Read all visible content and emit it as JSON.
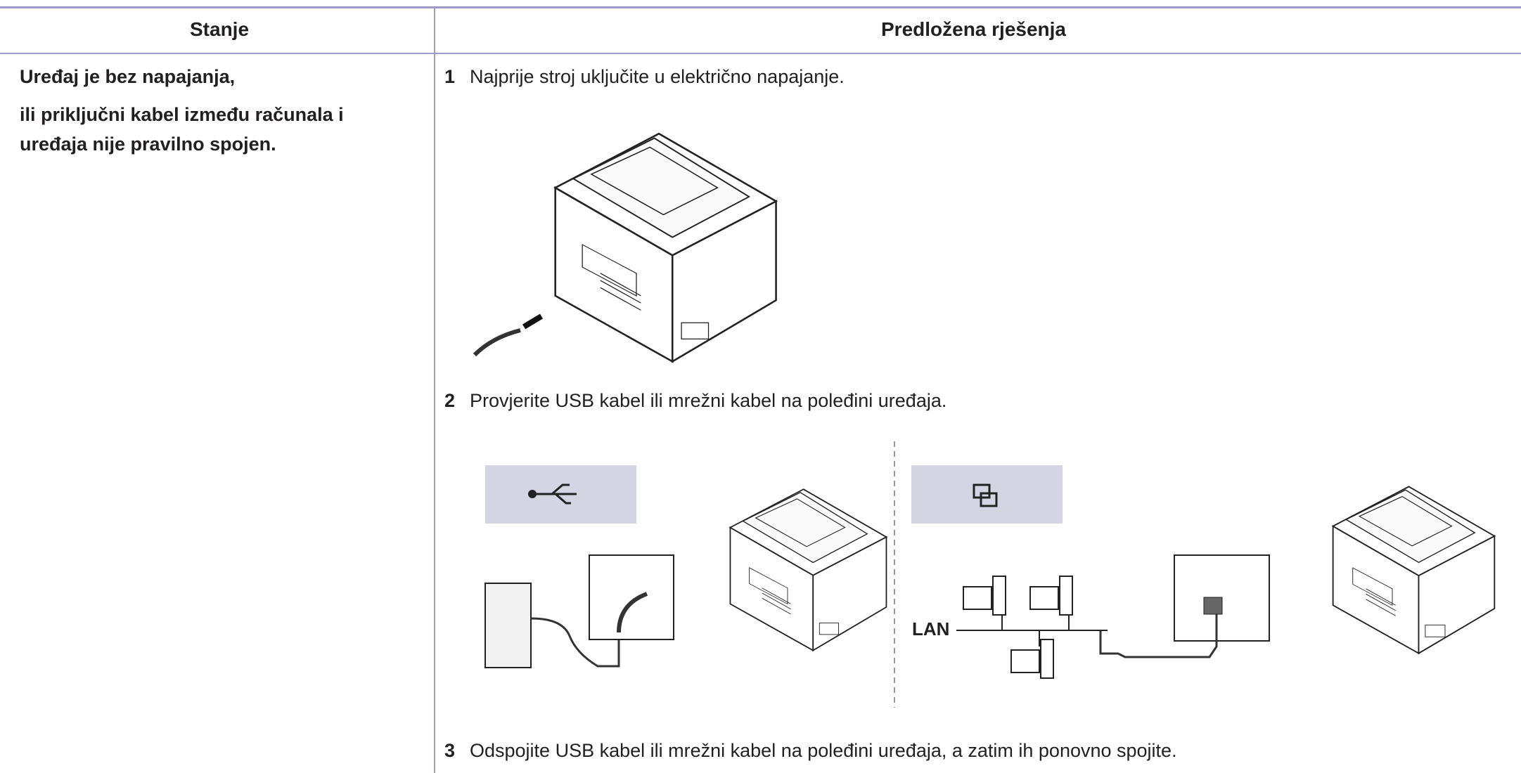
{
  "table": {
    "header": [
      "Stanje",
      "Predložena rješenja"
    ],
    "rows": [
      {
        "condition": [
          "Uređaj je bez napajanja,",
          "ili priključni kabel između računala i",
          "uređaja nije pravilno spojen."
        ],
        "steps": [
          {
            "number": "1",
            "text": "Najprije stroj uključite u električno napajanje."
          },
          {
            "number": "2",
            "text": "Provjerite USB kabel ili mrežni kabel na poleđini uređaja."
          },
          {
            "number": "3",
            "text": "Odspojite USB kabel ili mrežni kabel na poleđini uređaja, a zatim ih ponovno spojite."
          }
        ],
        "illustration_label": "LAN"
      }
    ]
  }
}
